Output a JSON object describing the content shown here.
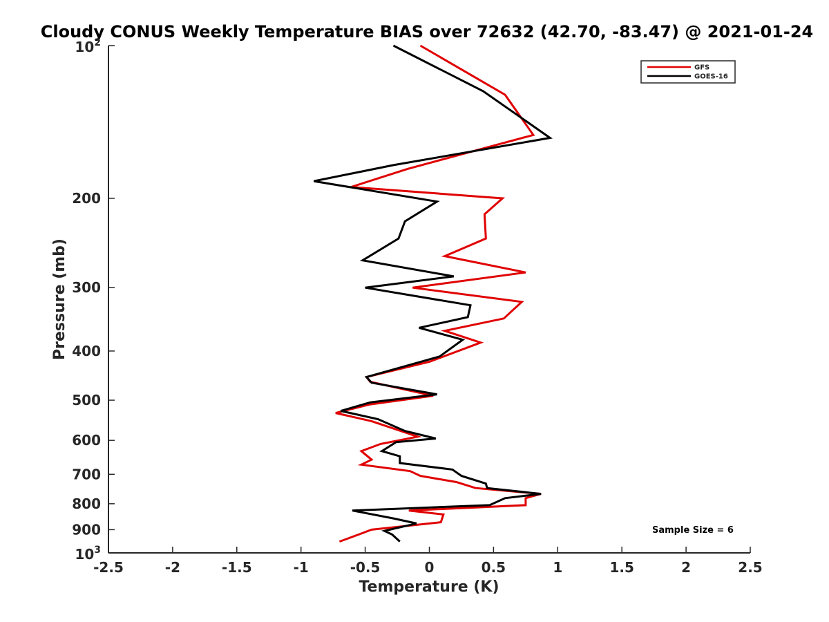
{
  "chart_data": {
    "type": "line",
    "title": "Cloudy CONUS Weekly Temperature BIAS over 72632 (42.70, -83.47) @ 2021-01-24",
    "xlabel": "Temperature (K)",
    "ylabel": "Pressure (mb)",
    "xlim": [
      -2.5,
      2.5
    ],
    "ylim": [
      1000,
      100
    ],
    "y_scale": "log",
    "x_ticks": [
      "-2.5",
      "-2",
      "-1.5",
      "-1",
      "-0.5",
      "0",
      "0.5",
      "1",
      "1.5",
      "2",
      "2.5"
    ],
    "y_ticks": [
      {
        "value": 100,
        "base": "10",
        "exp": "2"
      },
      {
        "value": 200,
        "label": "200"
      },
      {
        "value": 300,
        "label": "300"
      },
      {
        "value": 400,
        "label": "400"
      },
      {
        "value": 500,
        "label": "500"
      },
      {
        "value": 600,
        "label": "600"
      },
      {
        "value": 700,
        "label": "700"
      },
      {
        "value": 800,
        "label": "800"
      },
      {
        "value": 900,
        "label": "900"
      },
      {
        "value": 1000,
        "base": "10",
        "exp": "3"
      }
    ],
    "legend_position": "top-right",
    "grid": false,
    "annotation": "Sample Size = 6",
    "series": [
      {
        "name": "GFS",
        "color": "#e00000",
        "points": [
          {
            "x": -0.07,
            "p": 100
          },
          {
            "x": 0.59,
            "p": 125
          },
          {
            "x": 0.81,
            "p": 150
          },
          {
            "x": -0.17,
            "p": 175
          },
          {
            "x": -0.61,
            "p": 190
          },
          {
            "x": 0.57,
            "p": 200
          },
          {
            "x": 0.43,
            "p": 215
          },
          {
            "x": 0.44,
            "p": 240
          },
          {
            "x": 0.12,
            "p": 260
          },
          {
            "x": 0.75,
            "p": 280
          },
          {
            "x": -0.13,
            "p": 300
          },
          {
            "x": 0.72,
            "p": 320
          },
          {
            "x": 0.58,
            "p": 345
          },
          {
            "x": 0.12,
            "p": 365
          },
          {
            "x": 0.4,
            "p": 385
          },
          {
            "x": 0.0,
            "p": 420
          },
          {
            "x": -0.49,
            "p": 450
          },
          {
            "x": -0.46,
            "p": 460
          },
          {
            "x": 0.03,
            "p": 490
          },
          {
            "x": -0.47,
            "p": 510
          },
          {
            "x": -0.73,
            "p": 530
          },
          {
            "x": -0.45,
            "p": 550
          },
          {
            "x": -0.09,
            "p": 590
          },
          {
            "x": -0.38,
            "p": 610
          },
          {
            "x": -0.53,
            "p": 630
          },
          {
            "x": -0.45,
            "p": 655
          },
          {
            "x": -0.53,
            "p": 670
          },
          {
            "x": -0.15,
            "p": 690
          },
          {
            "x": -0.07,
            "p": 705
          },
          {
            "x": 0.21,
            "p": 725
          },
          {
            "x": 0.36,
            "p": 745
          },
          {
            "x": 0.87,
            "p": 765
          },
          {
            "x": 0.75,
            "p": 780
          },
          {
            "x": 0.75,
            "p": 805
          },
          {
            "x": -0.16,
            "p": 825
          },
          {
            "x": 0.11,
            "p": 840
          },
          {
            "x": 0.09,
            "p": 870
          },
          {
            "x": -0.45,
            "p": 900
          },
          {
            "x": -0.55,
            "p": 920
          },
          {
            "x": -0.7,
            "p": 950
          }
        ]
      },
      {
        "name": "GOES-16",
        "color": "#000000",
        "points": [
          {
            "x": -0.28,
            "p": 100
          },
          {
            "x": 0.42,
            "p": 123
          },
          {
            "x": 0.94,
            "p": 152
          },
          {
            "x": -0.28,
            "p": 172
          },
          {
            "x": -0.9,
            "p": 185
          },
          {
            "x": 0.06,
            "p": 203
          },
          {
            "x": -0.19,
            "p": 222
          },
          {
            "x": -0.24,
            "p": 240
          },
          {
            "x": -0.52,
            "p": 265
          },
          {
            "x": 0.19,
            "p": 285
          },
          {
            "x": -0.5,
            "p": 300
          },
          {
            "x": 0.32,
            "p": 325
          },
          {
            "x": 0.3,
            "p": 343
          },
          {
            "x": -0.08,
            "p": 360
          },
          {
            "x": 0.26,
            "p": 380
          },
          {
            "x": 0.08,
            "p": 410
          },
          {
            "x": -0.49,
            "p": 450
          },
          {
            "x": -0.45,
            "p": 462
          },
          {
            "x": 0.06,
            "p": 487
          },
          {
            "x": -0.46,
            "p": 505
          },
          {
            "x": -0.69,
            "p": 525
          },
          {
            "x": -0.4,
            "p": 545
          },
          {
            "x": -0.19,
            "p": 575
          },
          {
            "x": 0.05,
            "p": 595
          },
          {
            "x": -0.26,
            "p": 605
          },
          {
            "x": -0.37,
            "p": 630
          },
          {
            "x": -0.23,
            "p": 645
          },
          {
            "x": -0.23,
            "p": 665
          },
          {
            "x": 0.18,
            "p": 685
          },
          {
            "x": 0.25,
            "p": 705
          },
          {
            "x": 0.44,
            "p": 730
          },
          {
            "x": 0.45,
            "p": 745
          },
          {
            "x": 0.87,
            "p": 765
          },
          {
            "x": 0.59,
            "p": 780
          },
          {
            "x": 0.47,
            "p": 805
          },
          {
            "x": -0.6,
            "p": 825
          },
          {
            "x": -0.28,
            "p": 855
          },
          {
            "x": -0.1,
            "p": 875
          },
          {
            "x": -0.35,
            "p": 905
          },
          {
            "x": -0.29,
            "p": 920
          },
          {
            "x": -0.23,
            "p": 950
          }
        ]
      }
    ]
  }
}
